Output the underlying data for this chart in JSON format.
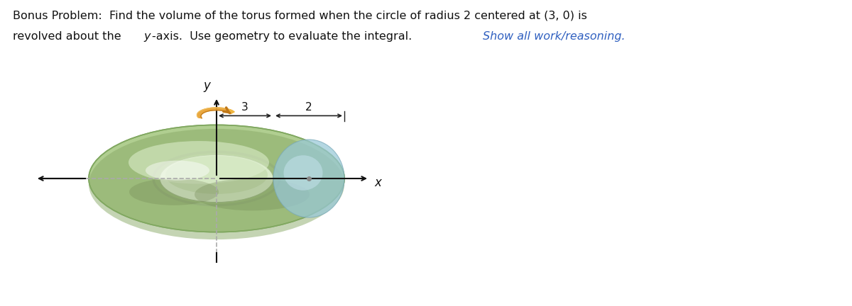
{
  "bg_color": "#ffffff",
  "torus_color_outer": "#b8d8a0",
  "torus_color_inner": "#c8e0a8",
  "torus_highlight": "#e8f8e0",
  "torus_dark": "#7a9860",
  "circle_color": "#a0c8d8",
  "axis_color": "#111111",
  "dashed_color": "#aaaaaa",
  "arrow_color": "#e8a030",
  "center_dot_color": "#888888",
  "label_3": "3",
  "label_2": "2",
  "label_x": "x",
  "label_y": "y",
  "fig_width": 12.0,
  "fig_height": 4.32,
  "text_line1": "Bonus Problem:  Find the volume of the torus formed when the circle of radius 2 centered at (3, 0) is",
  "text_line2a": "revolved about the ",
  "text_line2b": "y",
  "text_line2c": "-axis.  Use geometry to evaluate the integral.   ",
  "text_line2d": "Show all work/reasoning.",
  "text_color": "#111111",
  "text_blue": "#3060c0",
  "fontsize": 11.5
}
